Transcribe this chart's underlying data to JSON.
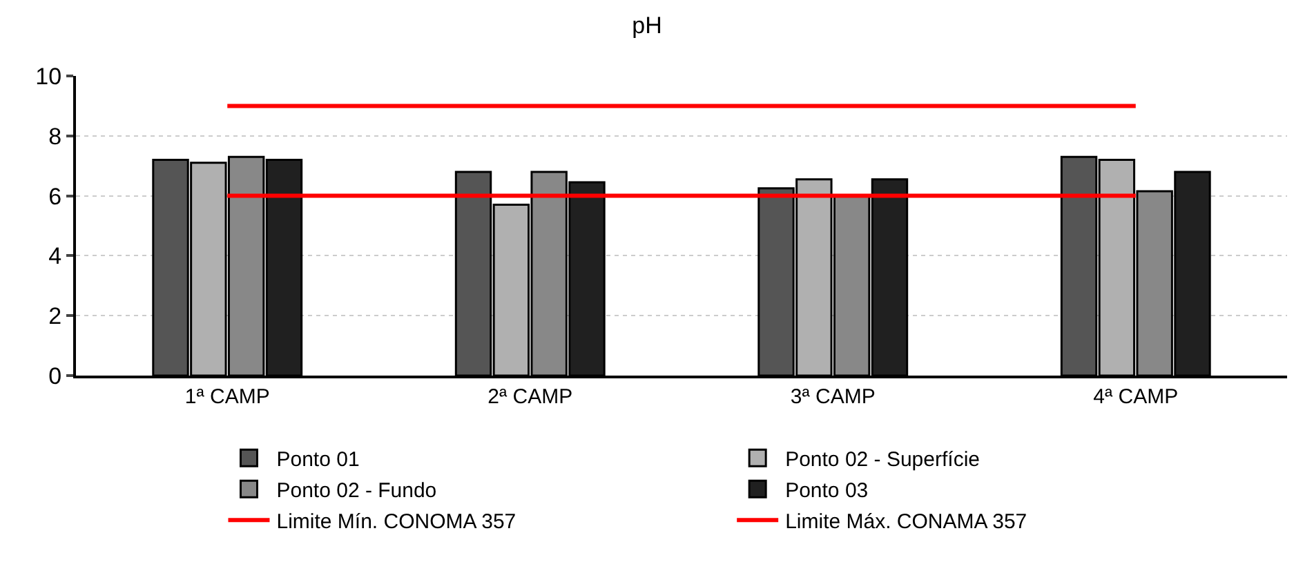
{
  "chart_data": {
    "type": "bar",
    "title": "pH",
    "categories": [
      "1ª CAMP",
      "2ª CAMP",
      "3ª CAMP",
      "4ª CAMP"
    ],
    "series": [
      {
        "name": "Ponto 01",
        "color": "#555555",
        "values": [
          7.2,
          6.8,
          6.25,
          7.3
        ]
      },
      {
        "name": "Ponto 02 - Superfície",
        "color": "#b0b0b0",
        "values": [
          7.1,
          5.7,
          6.55,
          7.2
        ]
      },
      {
        "name": "Ponto 02 - Fundo",
        "color": "#888888",
        "values": [
          7.3,
          6.8,
          6.0,
          6.15
        ]
      },
      {
        "name": "Ponto 03",
        "color": "#202020",
        "values": [
          7.2,
          6.45,
          6.55,
          6.8
        ]
      },
      {
        "name": "Limite Mín. CONOMA 357",
        "type": "line",
        "color": "#ff0000",
        "values": [
          6,
          6,
          6,
          6
        ]
      },
      {
        "name": "Limite Máx. CONAMA 357",
        "type": "line",
        "color": "#ff0000",
        "values": [
          9,
          9,
          9,
          9
        ]
      }
    ],
    "ylim": [
      0,
      10
    ],
    "yticks": [
      0,
      2,
      4,
      6,
      8,
      10
    ],
    "grid": "y",
    "legend": "bottom",
    "marker": "none",
    "line_style": "solid"
  }
}
